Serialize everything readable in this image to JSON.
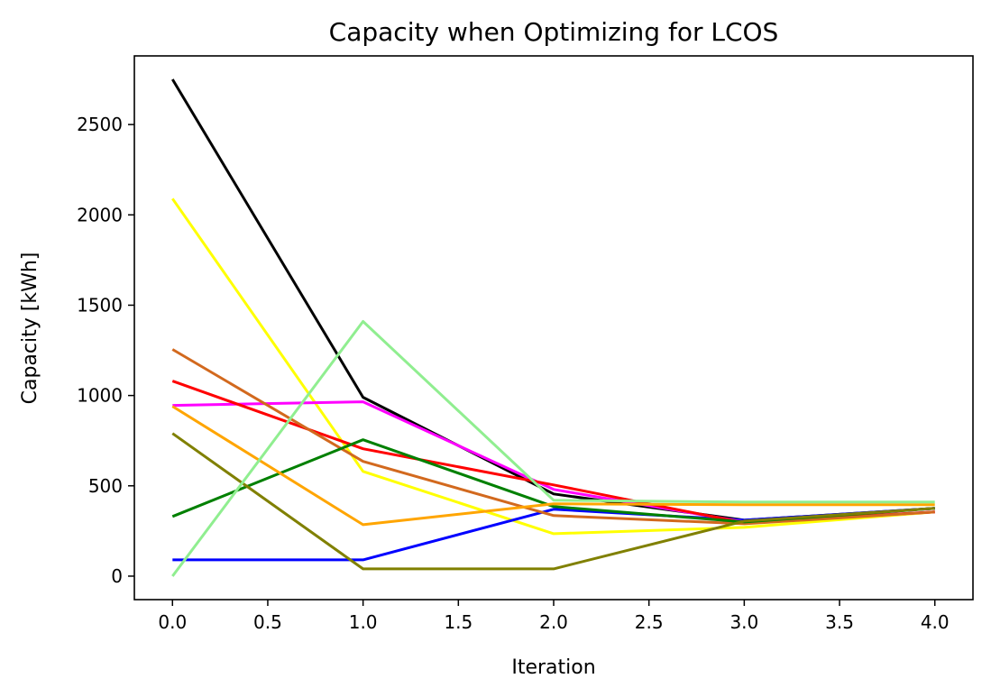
{
  "chart_data": {
    "type": "line",
    "title": "Capacity when Optimizing for LCOS",
    "xlabel": "Iteration",
    "ylabel": "Capacity [kWh]",
    "xlim": [
      -0.2,
      4.2
    ],
    "ylim": [
      -130,
      2880
    ],
    "xticks": [
      0.0,
      0.5,
      1.0,
      1.5,
      2.0,
      2.5,
      3.0,
      3.5,
      4.0
    ],
    "xtick_labels": [
      "0.0",
      "0.5",
      "1.0",
      "1.5",
      "2.0",
      "2.5",
      "3.0",
      "3.5",
      "4.0"
    ],
    "yticks": [
      0,
      500,
      1000,
      1500,
      2000,
      2500
    ],
    "ytick_labels": [
      "0",
      "500",
      "1000",
      "1500",
      "2000",
      "2500"
    ],
    "grid": false,
    "x": [
      0,
      1,
      2,
      3,
      4
    ],
    "series": [
      {
        "color": "#000000",
        "values": [
          2750,
          990,
          455,
          310,
          375
        ]
      },
      {
        "color": "#ffff00",
        "values": [
          2090,
          580,
          235,
          270,
          355
        ]
      },
      {
        "color": "#0000ff",
        "values": [
          90,
          90,
          370,
          310,
          375
        ]
      },
      {
        "color": "#ff00ff",
        "values": [
          945,
          965,
          480,
          300,
          355
        ]
      },
      {
        "color": "#ff0000",
        "values": [
          1080,
          705,
          505,
          295,
          355
        ]
      },
      {
        "color": "#d2691e",
        "values": [
          1255,
          635,
          335,
          290,
          355
        ]
      },
      {
        "color": "#008000",
        "values": [
          330,
          755,
          385,
          300,
          375
        ]
      },
      {
        "color": "#808000",
        "values": [
          790,
          40,
          40,
          305,
          375
        ]
      },
      {
        "color": "#ffa500",
        "values": [
          940,
          285,
          400,
          395,
          395
        ]
      },
      {
        "color": "#90ee90",
        "values": [
          0,
          1410,
          420,
          410,
          410
        ]
      }
    ]
  }
}
